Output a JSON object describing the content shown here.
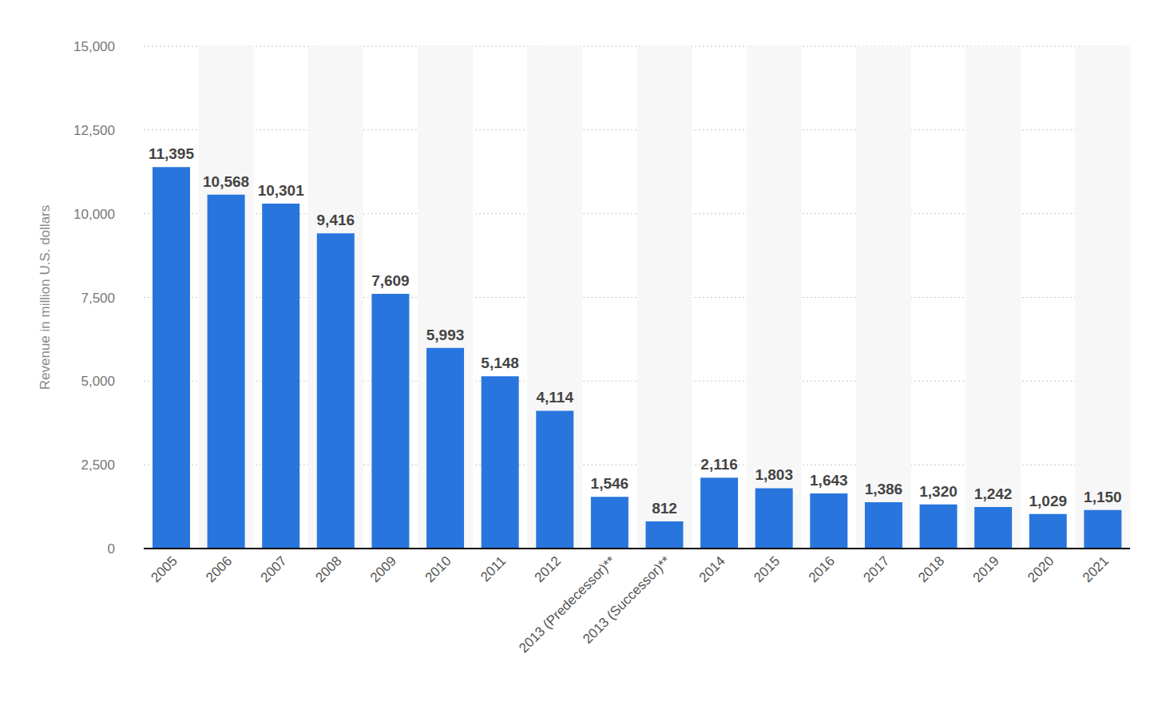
{
  "chart_data": {
    "type": "bar",
    "y_label": "Revenue in million U.S. dollars",
    "categories": [
      "2005",
      "2006",
      "2007",
      "2008",
      "2009",
      "2010",
      "2011",
      "2012",
      "2013 (Predecessor)**",
      "2013 (Successor)**",
      "2014",
      "2015",
      "2016",
      "2017",
      "2018",
      "2019",
      "2020",
      "2021"
    ],
    "values": [
      11395,
      10568,
      10301,
      9416,
      7609,
      5993,
      5148,
      4114,
      1546,
      812,
      2116,
      1803,
      1643,
      1386,
      1320,
      1242,
      1029,
      1150
    ],
    "value_labels": [
      "11,395",
      "10,568",
      "10,301",
      "9,416",
      "7,609",
      "5,993",
      "5,148",
      "4,114",
      "1,546",
      "812",
      "2,116",
      "1,803",
      "1,643",
      "1,386",
      "1,320",
      "1,242",
      "1,029",
      "1,150"
    ],
    "color": "#2876dd",
    "ylim": [
      0,
      15000
    ],
    "yticks": [
      0,
      {
        "value": 2500,
        "label": "2,500"
      },
      {
        "value": 5000,
        "label": "5,000"
      },
      {
        "value": 7500,
        "label": "7,500"
      },
      {
        "value": 10000,
        "label": "10,000"
      },
      {
        "value": 12500,
        "label": "12,500"
      },
      {
        "value": 15000,
        "label": "15,000"
      }
    ],
    "grid": true,
    "data_labels": true
  }
}
